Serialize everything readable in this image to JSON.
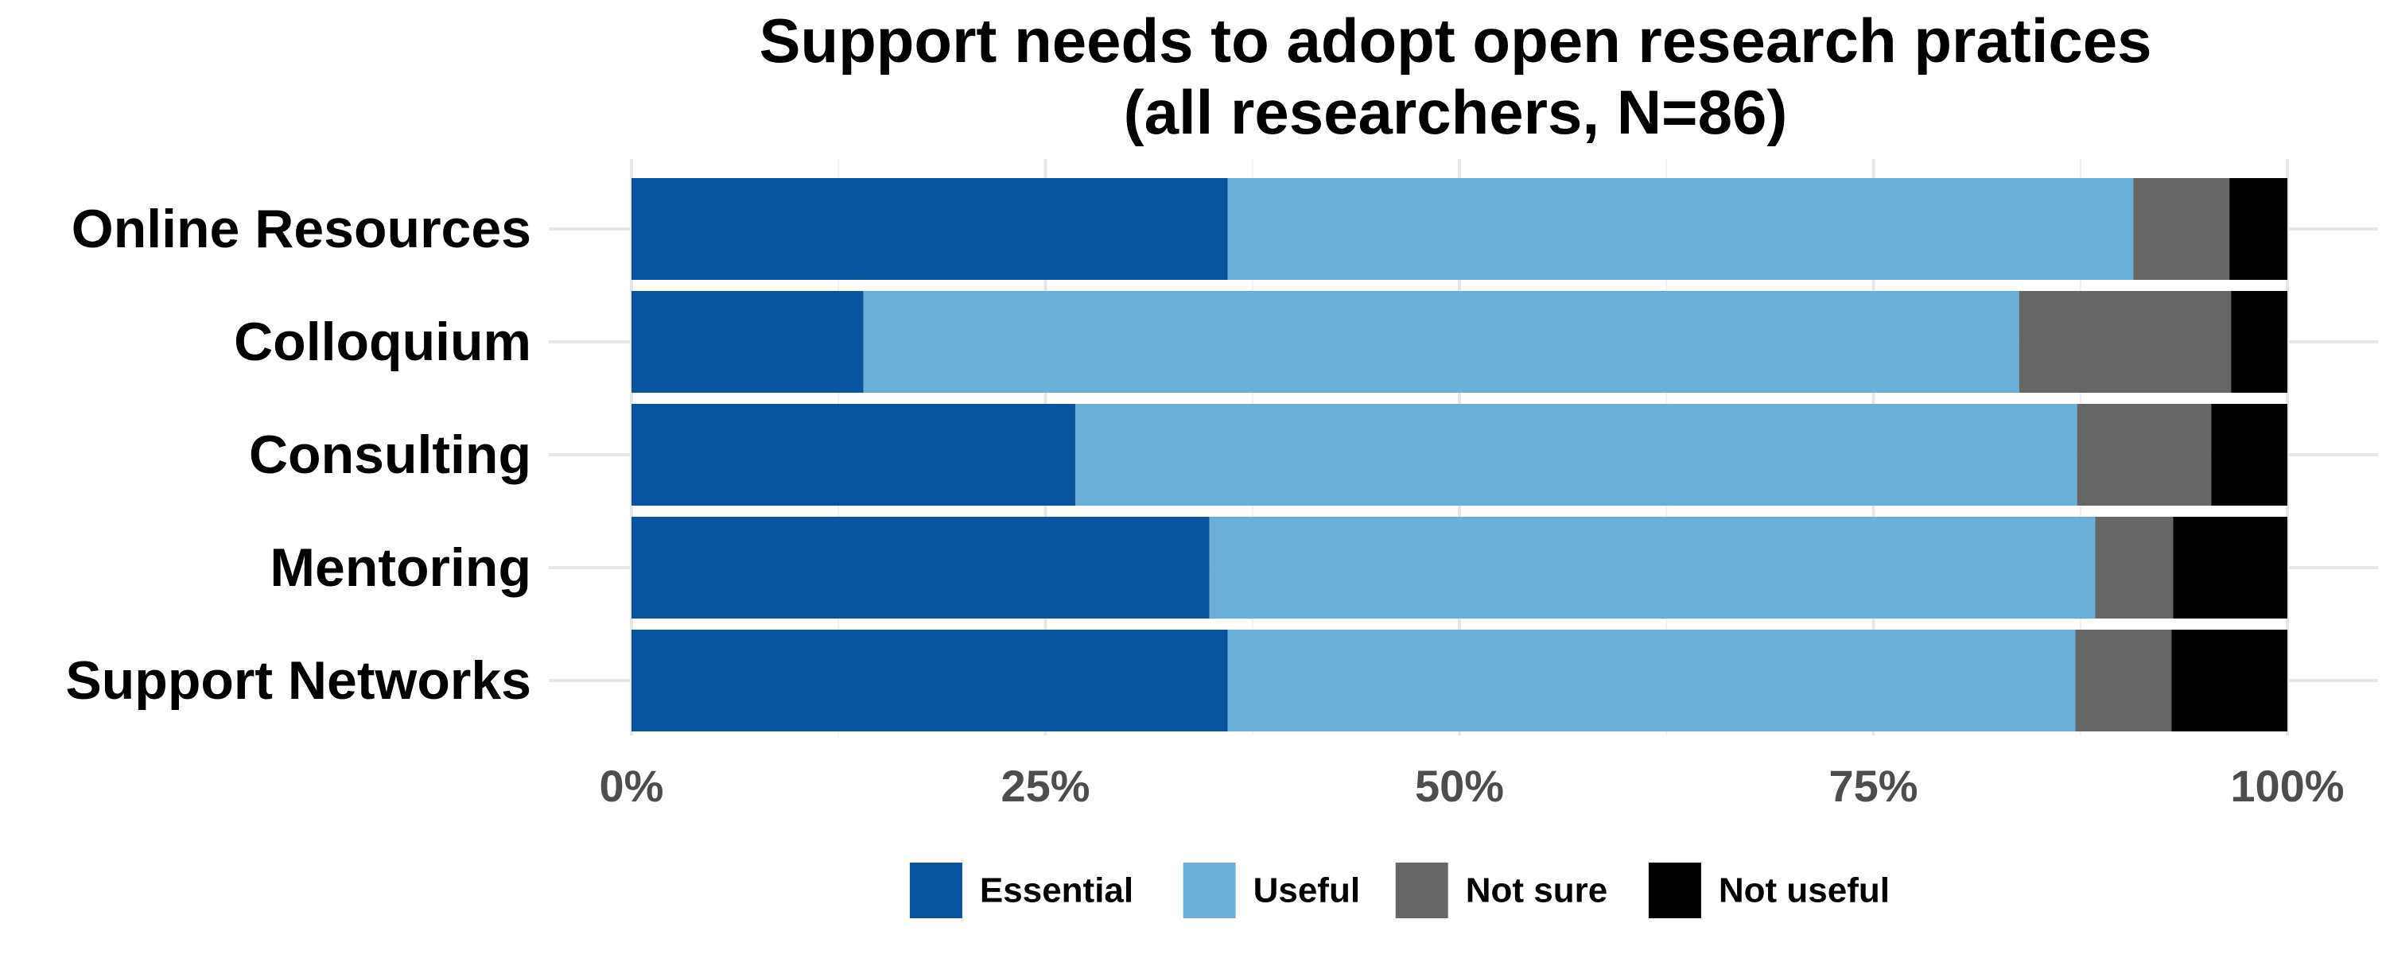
{
  "chart_data": {
    "type": "bar",
    "orientation": "horizontal",
    "stacked": "percent",
    "title": "Support needs to adopt open research pratices",
    "subtitle": "(all researchers, N=86)",
    "categories": [
      "Online Resources",
      "Colloquium",
      "Consulting",
      "Mentoring",
      "Support Networks"
    ],
    "series": [
      {
        "name": "Essential",
        "color": "#0A539E",
        "values": [
          36.0,
          14.0,
          26.8,
          34.9,
          36.0
        ]
      },
      {
        "name": "Useful",
        "color": "#6BAED6",
        "values": [
          54.7,
          69.8,
          60.5,
          53.5,
          51.2
        ]
      },
      {
        "name": "Not sure",
        "color": "#666666",
        "values": [
          5.8,
          12.8,
          8.1,
          4.7,
          5.8
        ]
      },
      {
        "name": "Not useful",
        "color": "#000000",
        "values": [
          3.5,
          3.4,
          4.6,
          6.9,
          7.0
        ]
      }
    ],
    "xticks": [
      "0%",
      "25%",
      "50%",
      "75%",
      "100%"
    ],
    "xlim": [
      0,
      100
    ],
    "grid": true,
    "legend_position": "bottom"
  }
}
